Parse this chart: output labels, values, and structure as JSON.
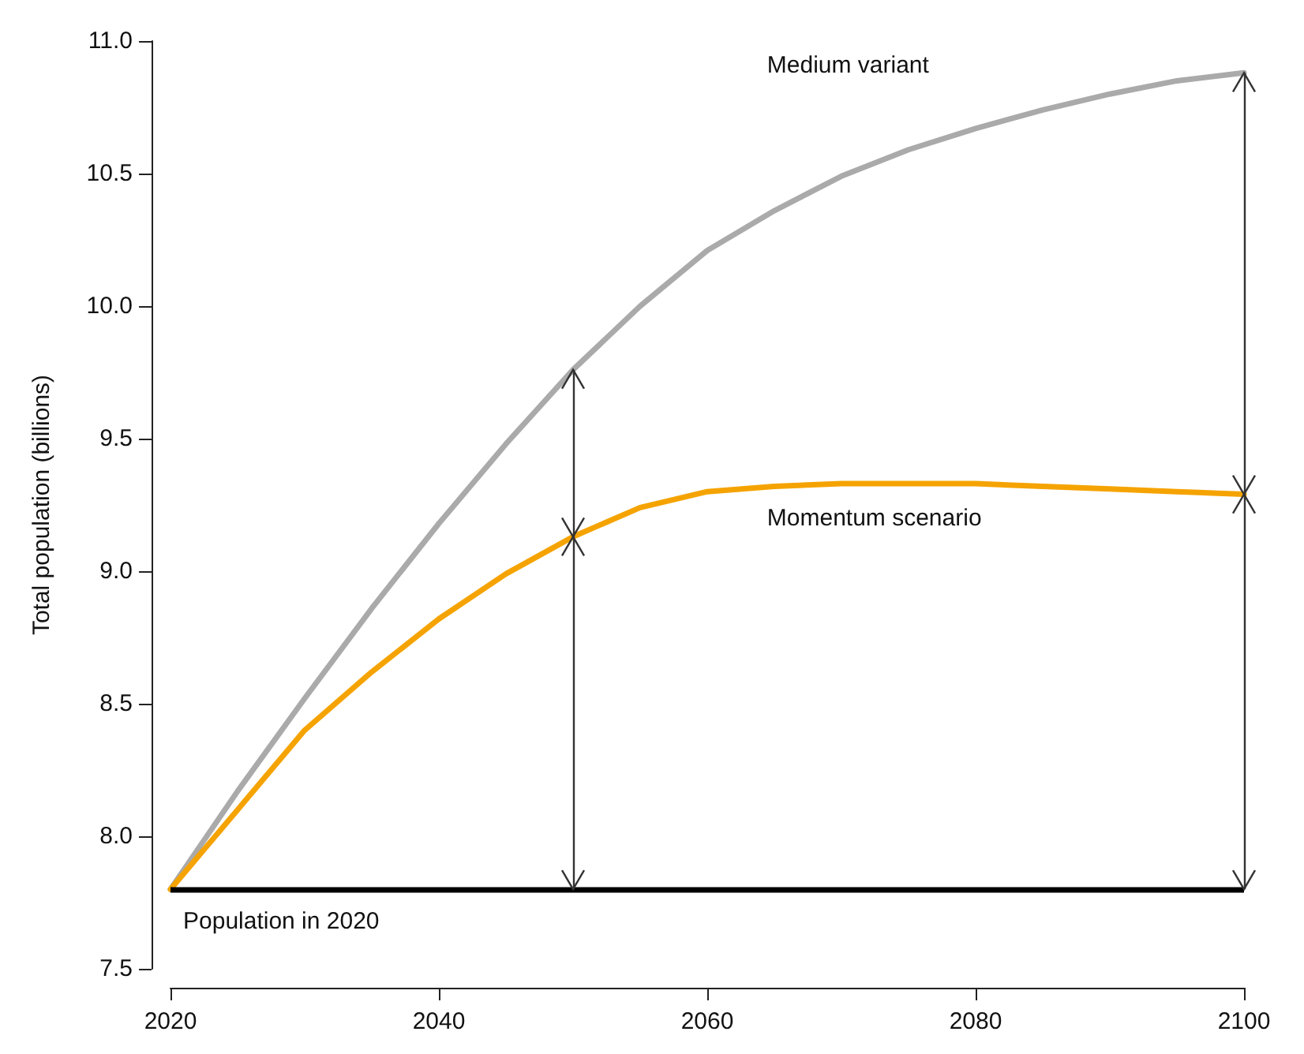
{
  "chart_data": {
    "type": "line",
    "ylabel": "Total population (billions)",
    "x": [
      2020,
      2025,
      2030,
      2035,
      2040,
      2045,
      2050,
      2055,
      2060,
      2065,
      2070,
      2075,
      2080,
      2085,
      2090,
      2095,
      2100
    ],
    "series": [
      {
        "color": "#aaaaaa",
        "values": [
          7.8,
          8.17,
          8.52,
          8.86,
          9.18,
          9.48,
          9.76,
          10.0,
          10.21,
          10.36,
          10.49,
          10.59,
          10.67,
          10.74,
          10.8,
          10.85,
          10.88
        ]
      },
      {
        "color": "#f5a300",
        "values": [
          7.8,
          8.1,
          8.4,
          8.62,
          8.82,
          8.99,
          9.13,
          9.24,
          9.3,
          9.32,
          9.33,
          9.33,
          9.33,
          9.32,
          9.31,
          9.3,
          9.29
        ]
      }
    ],
    "xlim": [
      2020,
      2100
    ],
    "xticks": [
      2020,
      2040,
      2060,
      2080,
      2100
    ],
    "ylim": [
      7.5,
      11
    ],
    "yticks": [
      {
        "value": 7.5,
        "label": "7.5"
      },
      {
        "value": 8,
        "label": "8.0"
      },
      {
        "value": 8.5,
        "label": "8.5"
      },
      {
        "value": 9,
        "label": "9.0"
      },
      {
        "value": 9.5,
        "label": "9.5"
      },
      {
        "value": 10,
        "label": "10.0"
      },
      {
        "value": 10.5,
        "label": "10.5"
      },
      {
        "value": 11,
        "label": "11.0"
      }
    ],
    "ref_lines": [
      {
        "axis": "y",
        "value": 7.8,
        "label": "Population in 2020",
        "color": "#000000"
      },
      {
        "axis": "x",
        "value": 2050,
        "color": "#333333"
      },
      {
        "axis": "x",
        "value": 2100,
        "color": "#333333"
      }
    ],
    "annotations": [
      "Medium variant",
      "Momentum scenario"
    ],
    "grid": false,
    "marker": "none",
    "line_style": "solid"
  }
}
